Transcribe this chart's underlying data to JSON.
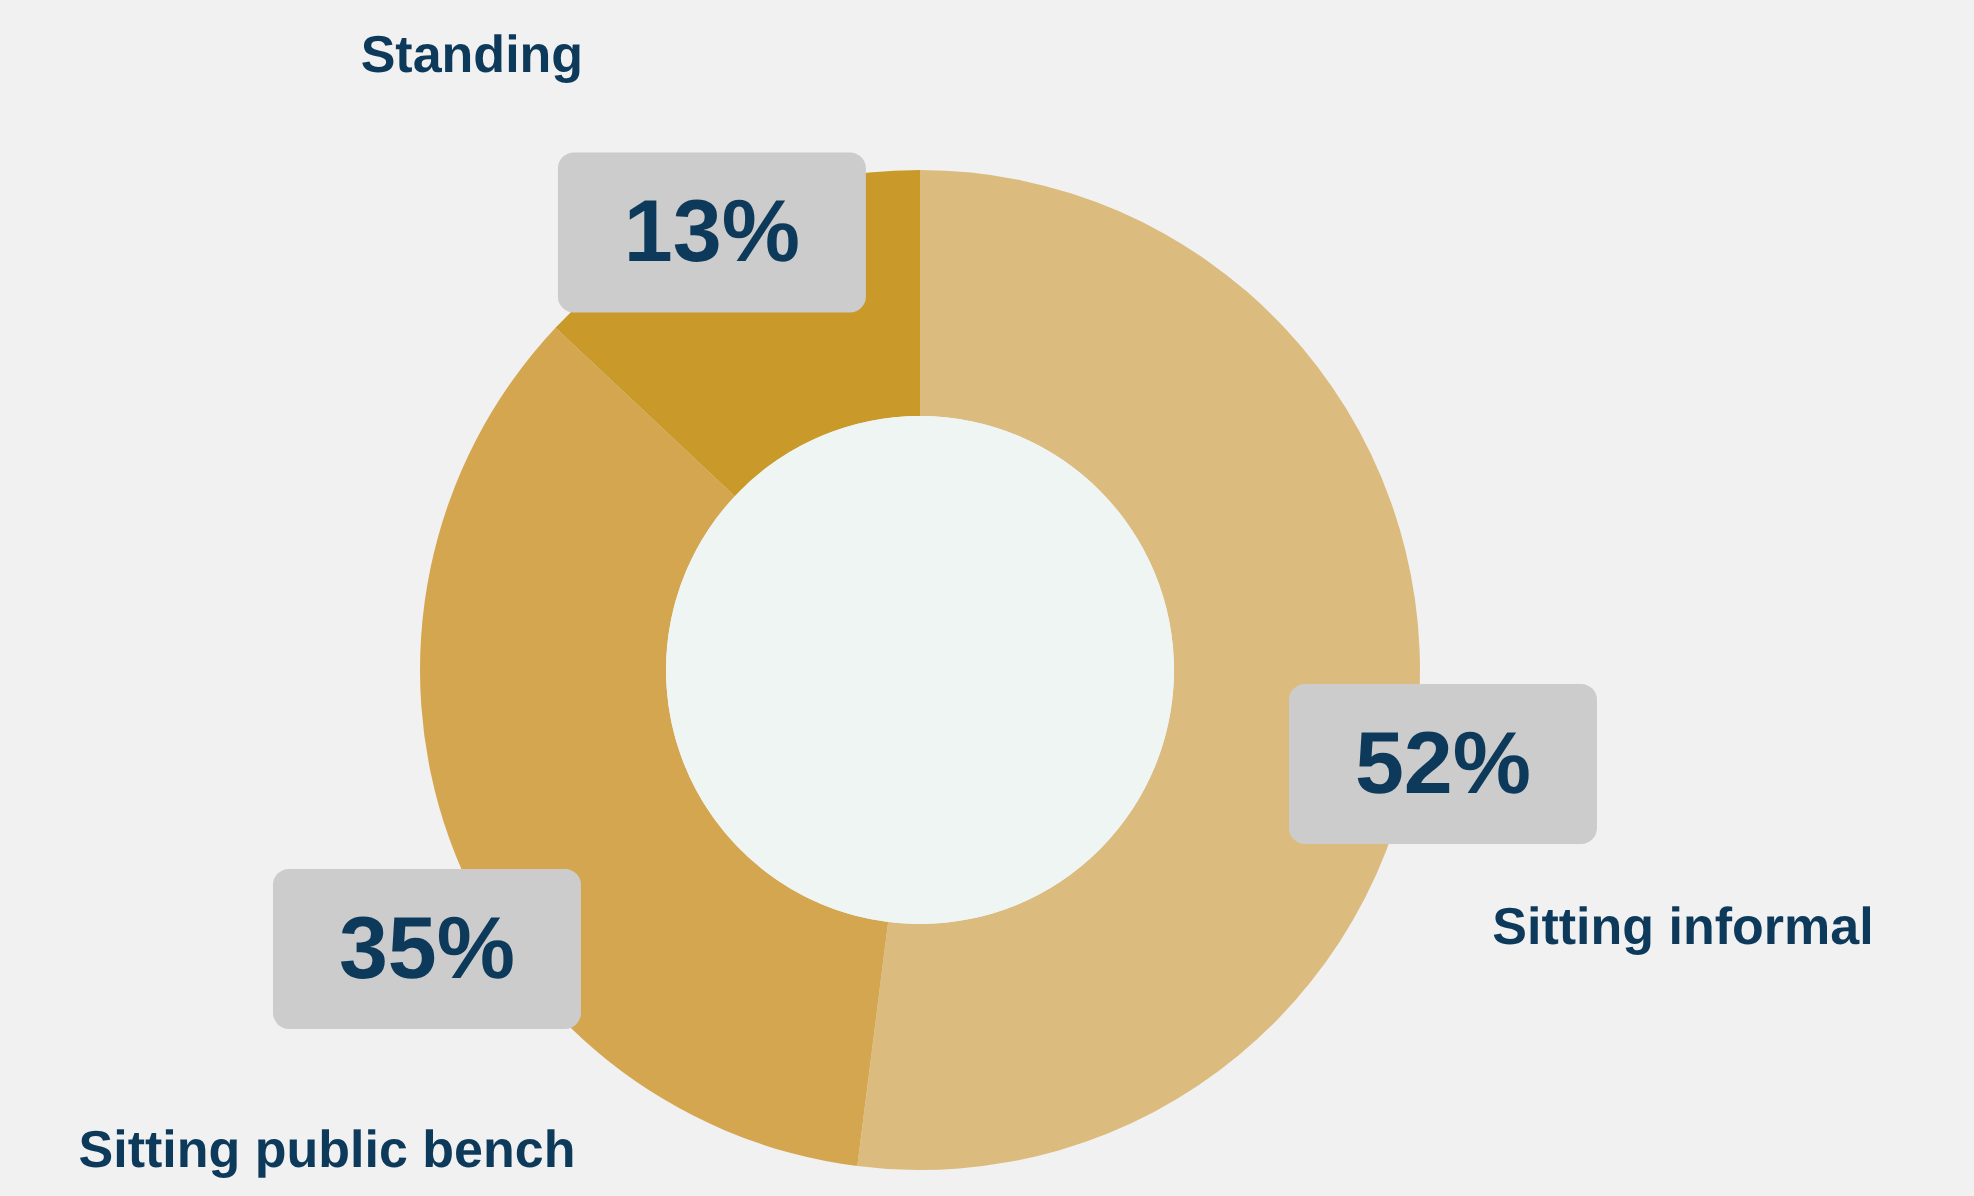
{
  "chart_data": {
    "type": "donut",
    "categories": [
      "Sitting informal",
      "Sitting public bench",
      "Standing"
    ],
    "values": [
      52,
      35,
      13
    ],
    "colors": [
      "#dbbb7e",
      "#d4a650",
      "#c99a2a"
    ],
    "value_labels": [
      "52%",
      "35%",
      "13%"
    ]
  }
}
